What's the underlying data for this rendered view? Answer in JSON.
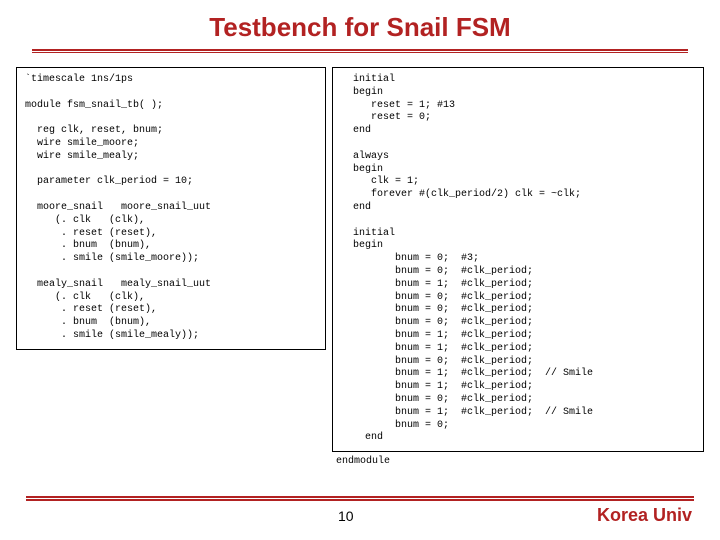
{
  "colors": {
    "accent": "#b22222",
    "text": "#000000"
  },
  "title": "Testbench for Snail FSM",
  "code_left": "`timescale 1ns/1ps\n\nmodule fsm_snail_tb( );\n\n  reg clk, reset, bnum;\n  wire smile_moore;\n  wire smile_mealy;\n\n  parameter clk_period = 10;\n\n  moore_snail   moore_snail_uut\n     (. clk   (clk),\n      . reset (reset),\n      . bnum  (bnum),\n      . smile (smile_moore));\n\n  mealy_snail   mealy_snail_uut\n     (. clk   (clk),\n      . reset (reset),\n      . bnum  (bnum),\n      . smile (smile_mealy));",
  "code_right": "  initial\n  begin\n     reset = 1; #13\n     reset = 0;\n  end\n\n  always\n  begin\n     clk = 1;\n     forever #(clk_period/2) clk = ~clk;\n  end\n\n  initial\n  begin\n         bnum = 0;  #3;\n         bnum = 0;  #clk_period;\n         bnum = 1;  #clk_period;\n         bnum = 0;  #clk_period;\n         bnum = 0;  #clk_period;\n         bnum = 0;  #clk_period;\n         bnum = 1;  #clk_period;\n         bnum = 1;  #clk_period;\n         bnum = 0;  #clk_period;\n         bnum = 1;  #clk_period;  // Smile\n         bnum = 1;  #clk_period;\n         bnum = 0;  #clk_period;\n         bnum = 1;  #clk_period;  // Smile\n         bnum = 0;\n    end",
  "endmodule": "endmodule",
  "page_number": "10",
  "brand": "Korea Univ"
}
